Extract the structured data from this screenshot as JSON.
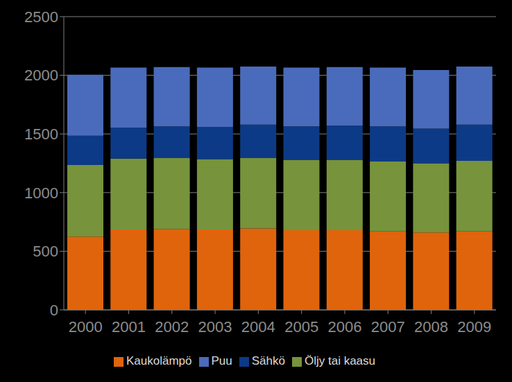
{
  "chart_data": {
    "type": "bar",
    "stacked": true,
    "grid": true,
    "legend": "bottom",
    "categories": [
      "2000",
      "2001",
      "2002",
      "2003",
      "2004",
      "2005",
      "2006",
      "2007",
      "2008",
      "2009"
    ],
    "series": [
      {
        "name": "Kaukolämpö",
        "color": "#e0640c",
        "values": [
          625,
          685,
          690,
          685,
          695,
          680,
          680,
          670,
          660,
          670
        ]
      },
      {
        "name": "Öljy tai kaasu",
        "color": "#77933c",
        "values": [
          610,
          605,
          605,
          600,
          600,
          600,
          600,
          595,
          590,
          600
        ]
      },
      {
        "name": "Sähkö",
        "color": "#0d3a86",
        "values": [
          250,
          265,
          270,
          275,
          285,
          285,
          290,
          300,
          295,
          310
        ]
      },
      {
        "name": "Puu",
        "color": "#4a6bbb",
        "values": [
          520,
          510,
          505,
          505,
          495,
          500,
          500,
          500,
          500,
          495
        ]
      }
    ],
    "ylim": [
      0,
      2500
    ],
    "yticks": [
      0,
      500,
      1000,
      1500,
      2000,
      2500
    ]
  }
}
